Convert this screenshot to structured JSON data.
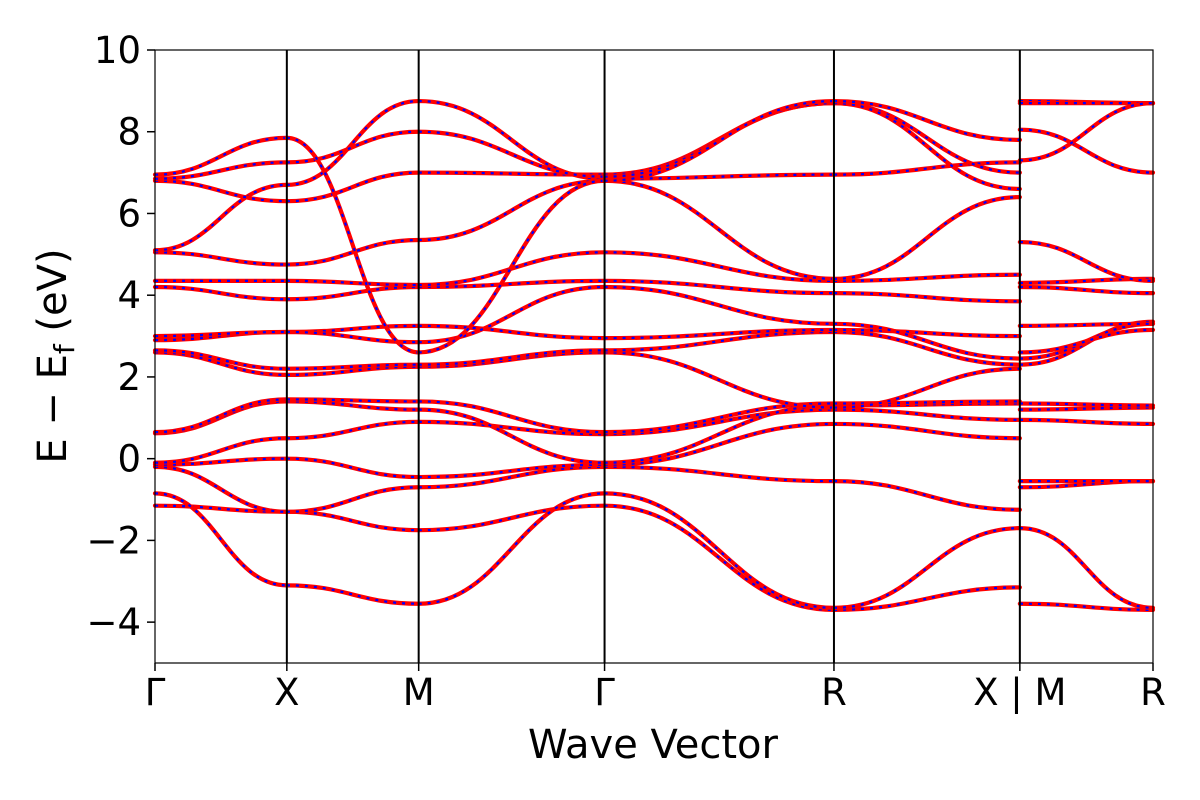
{
  "chart_data": {
    "type": "line",
    "title": "",
    "xlabel": "Wave Vector",
    "ylabel": {
      "main": "E − E",
      "sub": "f",
      "unit": " (eV)"
    },
    "ylim": [
      -5,
      10
    ],
    "yticks": [
      -4,
      -2,
      0,
      2,
      4,
      6,
      8,
      10
    ],
    "ytick_labels": [
      "−4",
      "−2",
      "0",
      "2",
      "4",
      "6",
      "8",
      "10"
    ],
    "xlim": [
      0,
      7.57
    ],
    "kpoints": [
      {
        "label": "Γ",
        "x": 0
      },
      {
        "label": "X",
        "x": 1.0
      },
      {
        "label": "M",
        "x": 2.0
      },
      {
        "label": "Γ",
        "x": 3.41
      },
      {
        "label": "R",
        "x": 5.15
      },
      {
        "label": "X | M",
        "x": 6.56
      },
      {
        "label": "R",
        "x": 7.57
      }
    ],
    "grid": false,
    "colors": {
      "series_a": "#ff0000",
      "series_b": "#0000ff"
    },
    "segments": [
      {
        "x0": 0,
        "x1": 1.0,
        "bands": [
          [
            -1.15,
            -1.3
          ],
          [
            -0.85,
            -3.1
          ],
          [
            -0.2,
            -1.3
          ],
          [
            -0.15,
            0.0
          ],
          [
            -0.1,
            0.5
          ],
          [
            0.62,
            1.4
          ],
          [
            0.65,
            1.45
          ],
          [
            2.6,
            2.05
          ],
          [
            2.65,
            2.2
          ],
          [
            2.9,
            3.1
          ],
          [
            3.0,
            3.1
          ],
          [
            4.2,
            3.9
          ],
          [
            4.35,
            4.35
          ],
          [
            5.05,
            4.75
          ],
          [
            5.1,
            6.7
          ],
          [
            6.8,
            6.3
          ],
          [
            6.85,
            7.25
          ],
          [
            6.95,
            7.85
          ]
        ]
      },
      {
        "x0": 1.0,
        "x1": 2.0,
        "bands": [
          [
            -1.3,
            -1.75
          ],
          [
            -3.1,
            -3.55
          ],
          [
            -1.3,
            -0.7
          ],
          [
            0.0,
            -0.45
          ],
          [
            0.5,
            0.9
          ],
          [
            1.4,
            1.2
          ],
          [
            1.45,
            1.4
          ],
          [
            2.05,
            2.25
          ],
          [
            2.2,
            2.3
          ],
          [
            3.1,
            3.25
          ],
          [
            3.1,
            2.85
          ],
          [
            3.9,
            4.2
          ],
          [
            4.35,
            4.25
          ],
          [
            4.75,
            5.35
          ],
          [
            6.7,
            8.75
          ],
          [
            6.3,
            7.0
          ],
          [
            7.25,
            8.0
          ],
          [
            7.85,
            2.6
          ]
        ]
      },
      {
        "x0": 2.0,
        "x1": 3.41,
        "bands": [
          [
            -1.75,
            -1.15
          ],
          [
            -3.55,
            -0.85
          ],
          [
            -0.7,
            -0.2
          ],
          [
            -0.45,
            -0.15
          ],
          [
            0.9,
            0.6
          ],
          [
            1.2,
            -0.1
          ],
          [
            1.4,
            0.65
          ],
          [
            2.25,
            2.6
          ],
          [
            2.3,
            2.65
          ],
          [
            3.25,
            2.95
          ],
          [
            2.85,
            4.2
          ],
          [
            4.2,
            4.35
          ],
          [
            4.25,
            5.05
          ],
          [
            5.35,
            6.8
          ],
          [
            8.75,
            6.85
          ],
          [
            7.0,
            6.95
          ],
          [
            8.0,
            6.9
          ],
          [
            2.6,
            6.8
          ]
        ]
      },
      {
        "x0": 3.41,
        "x1": 5.15,
        "bands": [
          [
            -1.15,
            -3.7
          ],
          [
            -0.85,
            -3.65
          ],
          [
            -0.2,
            -0.55
          ],
          [
            -0.15,
            0.85
          ],
          [
            0.6,
            1.2
          ],
          [
            -0.1,
            1.3
          ],
          [
            0.65,
            1.35
          ],
          [
            2.6,
            1.25
          ],
          [
            2.65,
            3.1
          ],
          [
            2.95,
            3.15
          ],
          [
            4.2,
            3.3
          ],
          [
            4.35,
            4.05
          ],
          [
            5.05,
            4.35
          ],
          [
            6.8,
            4.4
          ],
          [
            6.85,
            6.95
          ],
          [
            6.95,
            8.7
          ],
          [
            6.9,
            8.7
          ],
          [
            6.8,
            8.75
          ]
        ]
      },
      {
        "x0": 5.15,
        "x1": 6.56,
        "bands": [
          [
            -3.7,
            -3.15
          ],
          [
            -3.65,
            -1.7
          ],
          [
            -0.55,
            -1.25
          ],
          [
            0.85,
            0.5
          ],
          [
            1.2,
            0.95
          ],
          [
            1.3,
            1.35
          ],
          [
            1.35,
            1.4
          ],
          [
            1.25,
            2.2
          ],
          [
            3.1,
            2.3
          ],
          [
            3.15,
            3.0
          ],
          [
            3.3,
            2.45
          ],
          [
            4.05,
            3.85
          ],
          [
            4.35,
            4.5
          ],
          [
            4.4,
            6.4
          ],
          [
            6.95,
            7.25
          ],
          [
            8.7,
            7.0
          ],
          [
            8.7,
            6.6
          ],
          [
            8.75,
            7.8
          ]
        ]
      },
      {
        "x0": 6.56,
        "x1": 7.57,
        "bands": [
          [
            -3.55,
            -3.7
          ],
          [
            -1.7,
            -3.65
          ],
          [
            -0.7,
            -0.55
          ],
          [
            -0.55,
            -0.55
          ],
          [
            0.95,
            0.85
          ],
          [
            1.2,
            1.25
          ],
          [
            1.35,
            1.3
          ],
          [
            2.3,
            3.35
          ],
          [
            2.45,
            3.3
          ],
          [
            2.6,
            3.15
          ],
          [
            3.25,
            3.3
          ],
          [
            4.2,
            4.05
          ],
          [
            4.3,
            4.4
          ],
          [
            5.3,
            4.35
          ],
          [
            8.05,
            7.0
          ],
          [
            8.75,
            8.7
          ],
          [
            8.7,
            8.7
          ],
          [
            7.3,
            8.7
          ]
        ]
      }
    ]
  }
}
